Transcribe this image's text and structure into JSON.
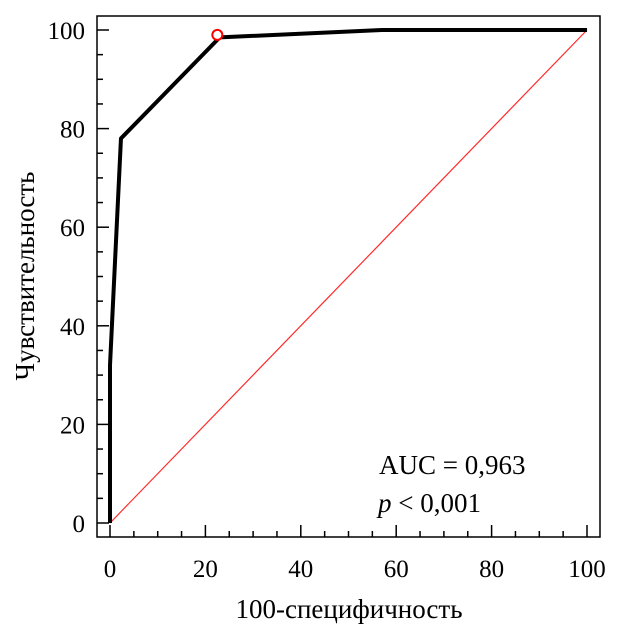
{
  "chart_data": {
    "type": "line",
    "xlabel": "100-специфичность",
    "ylabel": "Чувствительность",
    "xlim": [
      0,
      100
    ],
    "ylim": [
      0,
      100
    ],
    "x_ticks": [
      0,
      20,
      40,
      60,
      80,
      100
    ],
    "y_ticks": [
      0,
      20,
      40,
      60,
      80,
      100
    ],
    "x_tick_labels": [
      "0",
      "20",
      "40",
      "60",
      "80",
      "100"
    ],
    "y_tick_labels": [
      "0",
      "20",
      "40",
      "60",
      "80",
      "100"
    ],
    "grid": false,
    "series": [
      {
        "color": "#000000",
        "x": [
          0,
          0,
          2.3,
          23,
          57,
          100
        ],
        "y": [
          0,
          32,
          78,
          98.5,
          100,
          100
        ]
      },
      {
        "color": "#ff2a2a",
        "x": [
          0,
          100
        ],
        "y": [
          0,
          100
        ]
      }
    ],
    "highlight_point": {
      "x": 22.5,
      "y": 99,
      "color": "#ff0000"
    },
    "annotations": {
      "auc": "AUC = 0,963",
      "p_italic": "p",
      "p_rest": " < 0,001"
    }
  }
}
